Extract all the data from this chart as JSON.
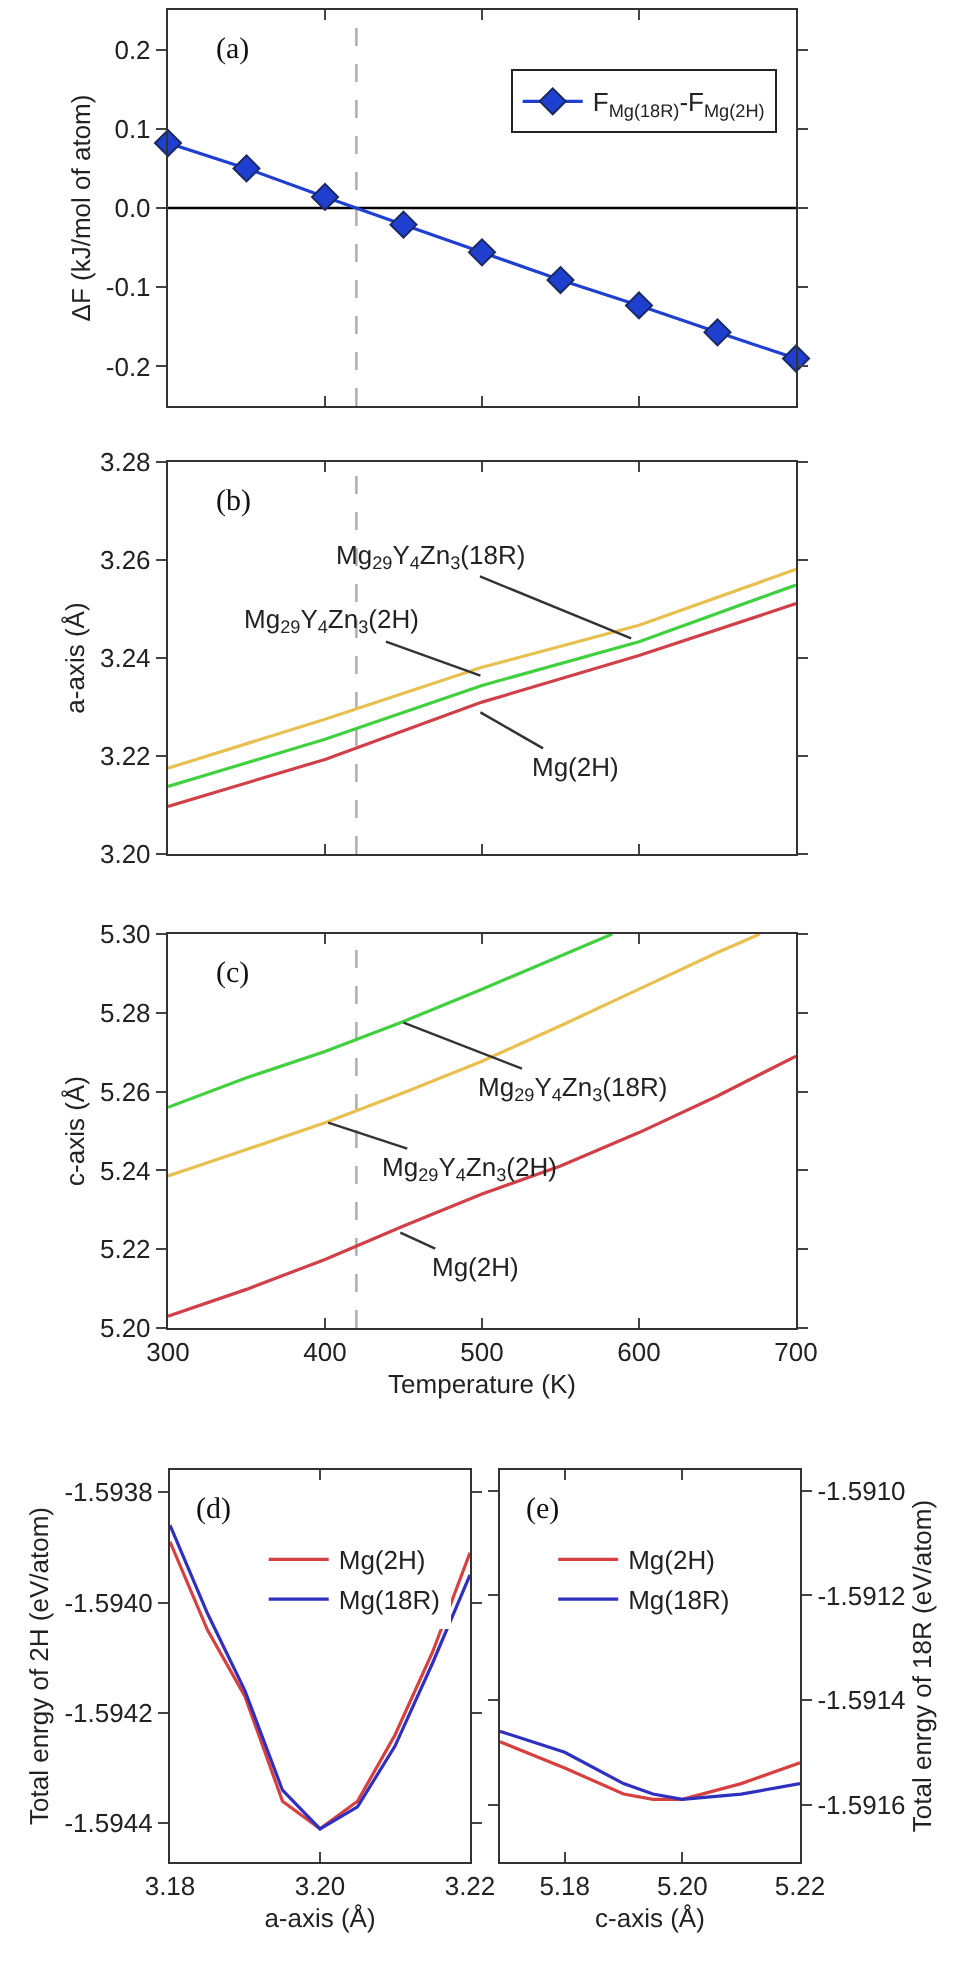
{
  "chart_data": [
    {
      "type": "line",
      "ylabel": "ΔF (kJ/mol of atom)",
      "xlim": [
        300,
        700
      ],
      "xticks": [
        300,
        400,
        500,
        600,
        700
      ],
      "ylim": [
        -0.25,
        0.25
      ],
      "yticks": [
        -0.2,
        -0.1,
        {
          "value": 0,
          "label": "0.0"
        },
        0.1,
        0.2
      ],
      "tick_labels": "y",
      "marker": "diamond",
      "legend": "top right",
      "grid": false,
      "x": [
        300,
        350,
        400,
        450,
        500,
        550,
        600,
        650,
        700
      ],
      "series": [
        {
          "name": "F$_{Mg(18R)}$-F$_{Mg(2H)}$",
          "color": "#1f3fd0",
          "values": [
            0.082,
            0.05,
            0.014,
            -0.021,
            -0.056,
            -0.091,
            -0.123,
            -0.157,
            -0.19
          ]
        }
      ],
      "ref_lines": [
        {
          "axis": "y",
          "value": 0,
          "color": "#000000",
          "line_style": "solid"
        },
        {
          "axis": "x",
          "value": 420,
          "color": "#aaaaaa",
          "line_style": "dashed"
        }
      ],
      "annotations": [
        "(a)"
      ]
    },
    {
      "type": "line",
      "ylabel": "a-axis (Å)",
      "xlim": [
        300,
        700
      ],
      "xticks": [
        300,
        400,
        500,
        600,
        700
      ],
      "ylim": [
        3.2,
        3.28
      ],
      "yticks": [
        {
          "value": 3.2,
          "label": "3.20"
        },
        {
          "value": 3.22,
          "label": "3.22"
        },
        {
          "value": 3.24,
          "label": "3.24"
        },
        {
          "value": 3.26,
          "label": "3.26"
        },
        {
          "value": 3.28,
          "label": "3.28"
        }
      ],
      "tick_labels": "y",
      "grid": false,
      "x": [
        300,
        400,
        500,
        600,
        700
      ],
      "series": [
        {
          "color": "#e8c050",
          "values": [
            3.2175,
            3.2275,
            3.2381,
            3.2467,
            3.2581
          ]
        },
        {
          "color": "#40d040",
          "values": [
            3.2138,
            3.2234,
            3.2344,
            3.2433,
            3.2549
          ]
        },
        {
          "color": "#d04048",
          "values": [
            3.2097,
            3.2193,
            3.231,
            3.2405,
            3.2511
          ]
        }
      ],
      "ref_lines": [
        {
          "axis": "x",
          "value": 420,
          "color": "#aaaaaa",
          "line_style": "dashed"
        }
      ],
      "annotations": [
        "(b)",
        {
          "text": "Mg$_{29}$Y$_{4}$Zn$_{3}$(18R)",
          "x": 595,
          "y": 3.244
        },
        {
          "text": "Mg$_{29}$Y$_{4}$Zn$_{3}$(2H)",
          "x": 499,
          "y": 3.2364
        },
        {
          "text": "Mg(2H)",
          "x": 499,
          "y": 3.2289
        }
      ]
    },
    {
      "type": "line",
      "xlabel": "Temperature (K)",
      "ylabel": "c-axis (Å)",
      "xlim": [
        300,
        700
      ],
      "xticks": [
        300,
        400,
        500,
        600,
        700
      ],
      "ylim": [
        5.2,
        5.3
      ],
      "yticks": [
        {
          "value": 5.2,
          "label": "5.20"
        },
        {
          "value": 5.22,
          "label": "5.22"
        },
        {
          "value": 5.24,
          "label": "5.24"
        },
        {
          "value": 5.26,
          "label": "5.26"
        },
        {
          "value": 5.28,
          "label": "5.28"
        },
        {
          "value": 5.3,
          "label": "5.30"
        }
      ],
      "grid": false,
      "series": [
        {
          "color": "#40d040",
          "x": [
            300,
            350,
            400,
            450,
            500,
            583
          ],
          "values": [
            5.256,
            5.2635,
            5.2702,
            5.2778,
            5.286,
            5.3
          ]
        },
        {
          "color": "#e8c050",
          "x": [
            300,
            350,
            400,
            450,
            500,
            550,
            600,
            650,
            677
          ],
          "values": [
            5.2386,
            5.2453,
            5.2521,
            5.2597,
            5.2677,
            5.2767,
            5.286,
            5.2953,
            5.3
          ]
        },
        {
          "color": "#d04048",
          "x": [
            300,
            350,
            400,
            450,
            500,
            550,
            600,
            650,
            700
          ],
          "values": [
            5.203,
            5.2098,
            5.2174,
            5.2259,
            5.234,
            5.2411,
            5.2496,
            5.2589,
            5.269
          ]
        }
      ],
      "ref_lines": [
        {
          "axis": "x",
          "value": 420,
          "color": "#aaaaaa",
          "line_style": "dashed"
        }
      ],
      "annotations": [
        "(c)",
        {
          "text": "Mg$_{29}$Y$_{4}$Zn$_{3}$(18R)",
          "x": 450,
          "y": 5.2775
        },
        {
          "text": "Mg$_{29}$Y$_{4}$Zn$_{3}$(2H)",
          "x": 402,
          "y": 5.2521
        },
        {
          "text": "Mg(2H)",
          "x": 448,
          "y": 5.2242
        }
      ]
    },
    {
      "type": "line",
      "xlabel": "a-axis (Å)",
      "ylabel": "Total enrgy of 2H (eV/atom)",
      "xlim": [
        3.18,
        3.22
      ],
      "xticks": [
        3.18,
        {
          "value": 3.2,
          "label": "3.20"
        },
        3.22
      ],
      "ylim": [
        -1.59447,
        -1.59376
      ],
      "yticks": [
        -1.5944,
        -1.5942,
        {
          "value": -1.594,
          "label": "-1.5940"
        },
        -1.5938
      ],
      "legend": "top right",
      "grid": false,
      "x": [
        3.18,
        3.185,
        3.19,
        3.195,
        3.2,
        3.205,
        3.21,
        3.215,
        3.22
      ],
      "series": [
        {
          "name": "Mg(2H)",
          "color": "#d84040",
          "values": [
            -1.59389,
            -1.59405,
            -1.59417,
            -1.59436,
            -1.59441,
            -1.59436,
            -1.59424,
            -1.59409,
            -1.59391
          ]
        },
        {
          "name": "Mg(18R)",
          "color": "#3030c0",
          "values": [
            -1.59386,
            -1.59402,
            -1.59416,
            -1.59434,
            -1.59441,
            -1.59437,
            -1.59426,
            -1.59411,
            -1.59395
          ]
        }
      ],
      "annotations": [
        "(d)"
      ]
    },
    {
      "type": "line",
      "xlabel": "c-axis (Å)",
      "y2label": "Total enrgy of 18R (eV/atom)",
      "xlim": [
        5.169,
        5.22
      ],
      "xticks": [
        5.18,
        {
          "value": 5.2,
          "label": "5.20"
        },
        5.22
      ],
      "y2lim": [
        -1.59171,
        -1.59096
      ],
      "y2ticks": [
        -1.5916,
        -1.5914,
        -1.5912,
        {
          "value": -1.591,
          "label": "-1.5910"
        }
      ],
      "legend": "top left",
      "grid": false,
      "x": [
        5.169,
        5.18,
        5.19,
        5.195,
        5.2,
        5.21,
        5.22
      ],
      "series": [
        {
          "name": "Mg(2H)",
          "color": "#d84040",
          "axis": "y2",
          "values": [
            -1.59148,
            -1.59153,
            -1.59158,
            -1.59159,
            -1.59159,
            -1.59156,
            -1.59152
          ]
        },
        {
          "name": "Mg(18R)",
          "color": "#3030c0",
          "axis": "y2",
          "values": [
            -1.59146,
            -1.5915,
            -1.59156,
            -1.59158,
            -1.59159,
            -1.59158,
            -1.59156
          ]
        }
      ],
      "annotations": [
        "(e)"
      ]
    }
  ]
}
